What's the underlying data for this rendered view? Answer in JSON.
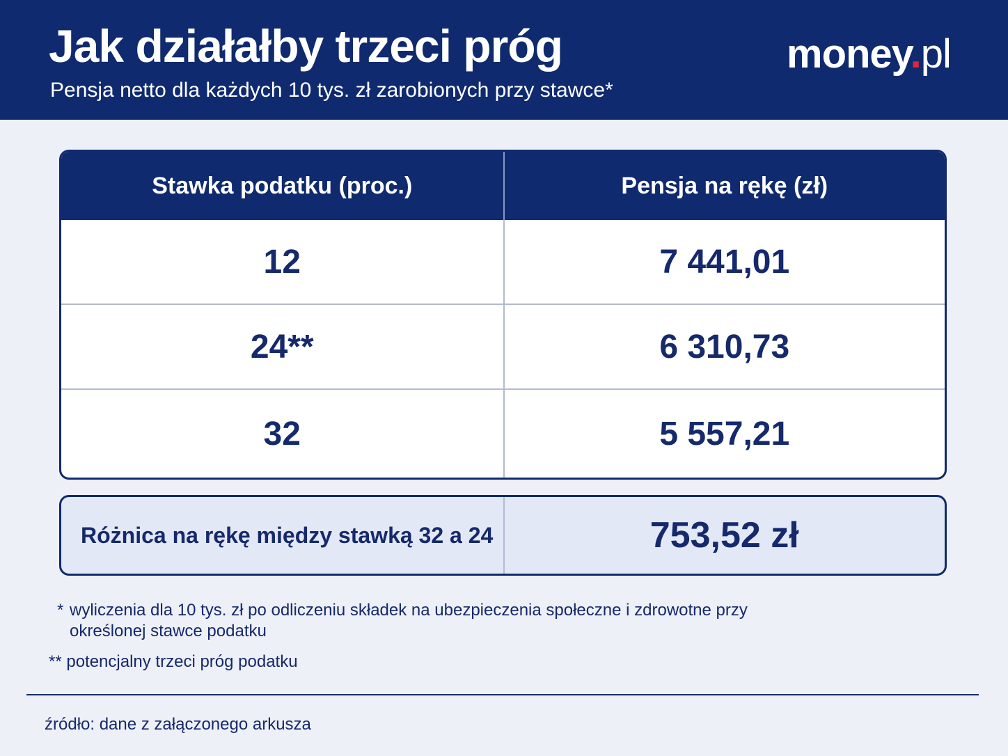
{
  "header": {
    "title": "Jak działałby trzeci próg",
    "subtitle": "Pensja netto dla każdych 10 tys. zł zarobionych przy stawce*",
    "logo": {
      "brand": "money",
      "dot": ".",
      "tld": "pl"
    }
  },
  "colors": {
    "navy": "#0f2a6e",
    "text": "#15296b",
    "background": "#eef0f7",
    "logo_dot": "#e2233d",
    "diff_box": "#e3e8f6"
  },
  "chart_data": {
    "type": "table",
    "columns": [
      "Stawka podatku (proc.)",
      "Pensja na rękę (zł)"
    ],
    "rows": [
      [
        "12",
        "7 441,01"
      ],
      [
        "24**",
        "6 310,73"
      ],
      [
        "32",
        "5 557,21"
      ]
    ],
    "summary": {
      "label": "Różnica na rękę między stawką 32 a 24",
      "value": "753,52 zł"
    }
  },
  "footnotes": {
    "note1_mark": "*",
    "note1_text": "wyliczenia dla 10 tys. zł po odliczeniu składek na ubezpieczenia społeczne i zdrowotne przy określonej stawce podatku",
    "note2": "** potencjalny trzeci próg podatku"
  },
  "source": "źródło: dane z załączonego arkusza"
}
